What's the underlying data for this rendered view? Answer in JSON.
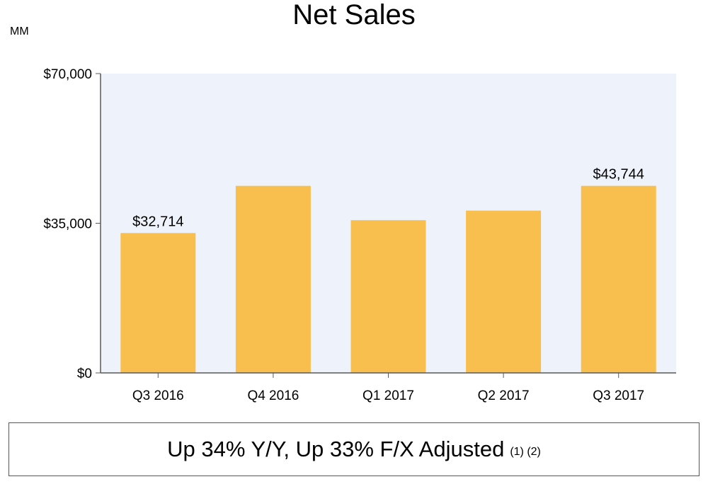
{
  "chart_data": {
    "type": "bar",
    "title": "Net Sales",
    "unit_label": "MM",
    "categories": [
      "Q3 2016",
      "Q4 2016",
      "Q1 2017",
      "Q2 2017",
      "Q3 2017"
    ],
    "values": [
      32714,
      43741,
      35714,
      37955,
      43744
    ],
    "data_labels": [
      "$32,714",
      "",
      "",
      "",
      "$43,744"
    ],
    "ylim": [
      0,
      70000
    ],
    "yticks": [
      0,
      35000,
      70000
    ],
    "ytick_labels": [
      "$0",
      "$35,000",
      "$70,000"
    ],
    "grid": false,
    "colors": {
      "bar": "#F8BF4F",
      "plot_background": "#EEF3FB",
      "axis": "#595959"
    }
  },
  "summary": {
    "text": "Up 34% Y/Y, Up 33% F/X Adjusted",
    "note": "(1) (2)"
  }
}
